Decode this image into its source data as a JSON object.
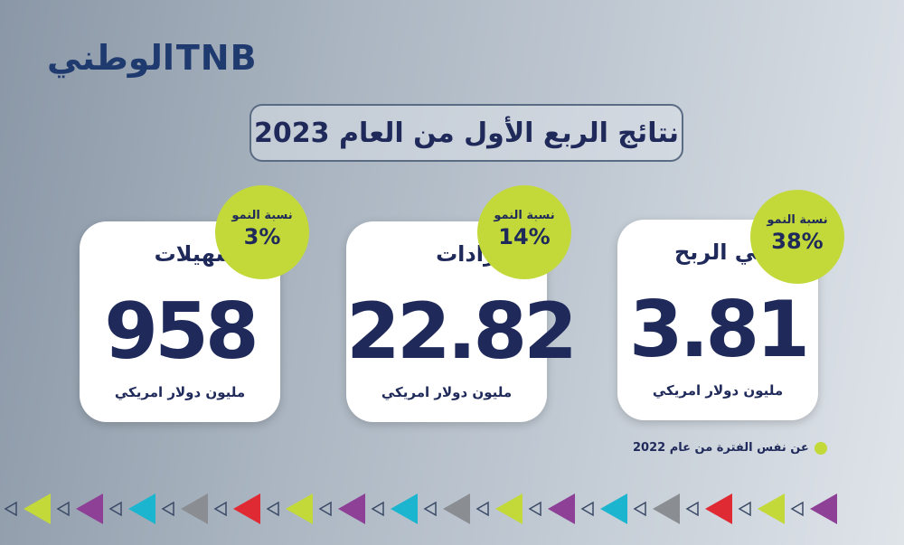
{
  "logo": {
    "latin": "TNB",
    "arabic": "الوطني"
  },
  "header": {
    "title": "نتائج الربع الأول من العام 2023"
  },
  "cards": [
    {
      "label": "صافي الربح",
      "growth_label": "نسبة النمو",
      "growth": "38%",
      "value": "3.81",
      "unit": "مليون دولار امريكي"
    },
    {
      "label": "الإيرادات",
      "growth_label": "نسبة النمو",
      "growth": "14%",
      "value": "22.82",
      "unit": "مليون دولار امريكي"
    },
    {
      "label": "التسهيلات",
      "growth_label": "نسبة النمو",
      "growth": "3%",
      "value": "958",
      "unit": "مليون دولار امريكي"
    }
  ],
  "footnote": "عن نفس الفترة من عام 2022"
}
